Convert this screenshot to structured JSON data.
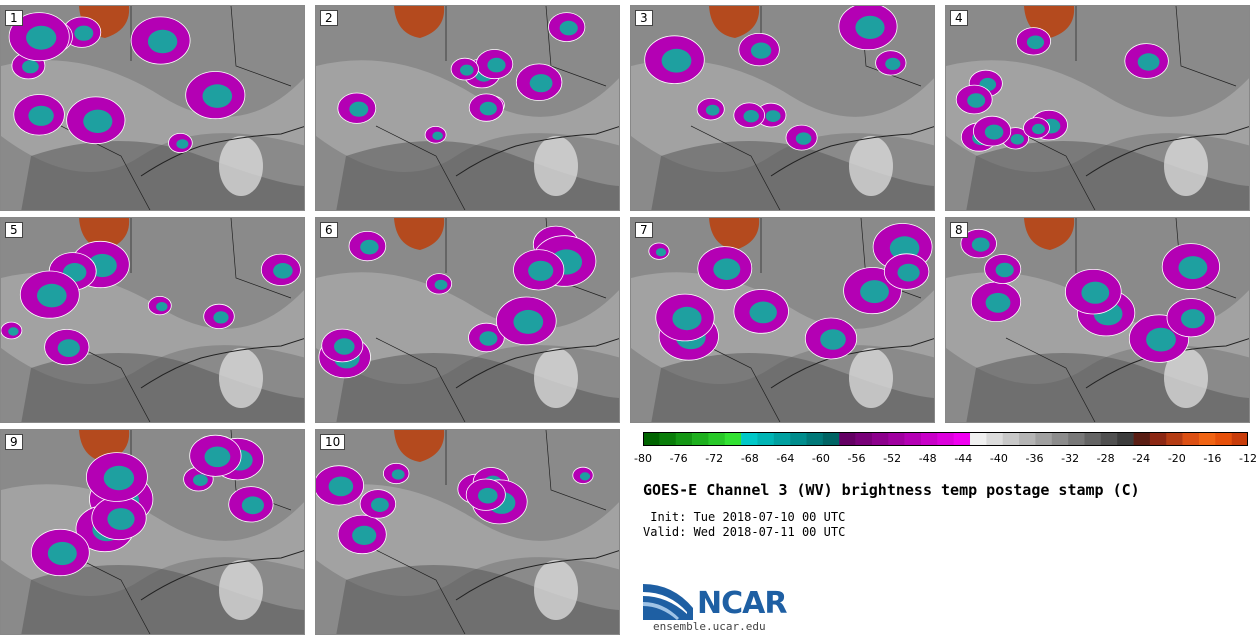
{
  "panels": [
    "1",
    "2",
    "3",
    "4",
    "5",
    "6",
    "7",
    "8",
    "9",
    "10"
  ],
  "colorbar": {
    "colors": [
      "#006400",
      "#0a7d0a",
      "#149614",
      "#1eaf1e",
      "#28c828",
      "#32e132",
      "#00c8c8",
      "#00b4b4",
      "#00a0a0",
      "#008c8c",
      "#007878",
      "#006464",
      "#640064",
      "#780078",
      "#8c008c",
      "#a000a0",
      "#b400b4",
      "#c800c8",
      "#dc00dc",
      "#f000f0",
      "#f0f0f0",
      "#dcdcdc",
      "#c8c8c8",
      "#b4b4b4",
      "#a0a0a0",
      "#8c8c8c",
      "#787878",
      "#646464",
      "#505050",
      "#3c3c3c",
      "#5a1e14",
      "#8c2814",
      "#b43c14",
      "#dc5014",
      "#f06414",
      "#e6500a",
      "#c83c0a"
    ],
    "ticks": [
      "-80",
      "-76",
      "-72",
      "-68",
      "-64",
      "-60",
      "-56",
      "-52",
      "-48",
      "-44",
      "-40",
      "-36",
      "-32",
      "-28",
      "-24",
      "-20",
      "-16",
      "-12"
    ]
  },
  "title": "GOES-E Channel 3 (WV) brightness temp postage stamp (C)",
  "init": " Init: Tue 2018-07-10 00 UTC",
  "valid": "Valid: Wed 2018-07-11 00 UTC",
  "logo_text": "NCAR",
  "site": "ensemble.ucar.edu",
  "colors": {
    "background": "#ffffff",
    "map_base": "#8a8a8a",
    "moist": "#a8a8a8",
    "dry": "#5a5a5a",
    "warm": "#b44a1e",
    "cold": "#b400b4",
    "coldest": "#1ea0a0",
    "brand": "#1e5fa3"
  }
}
